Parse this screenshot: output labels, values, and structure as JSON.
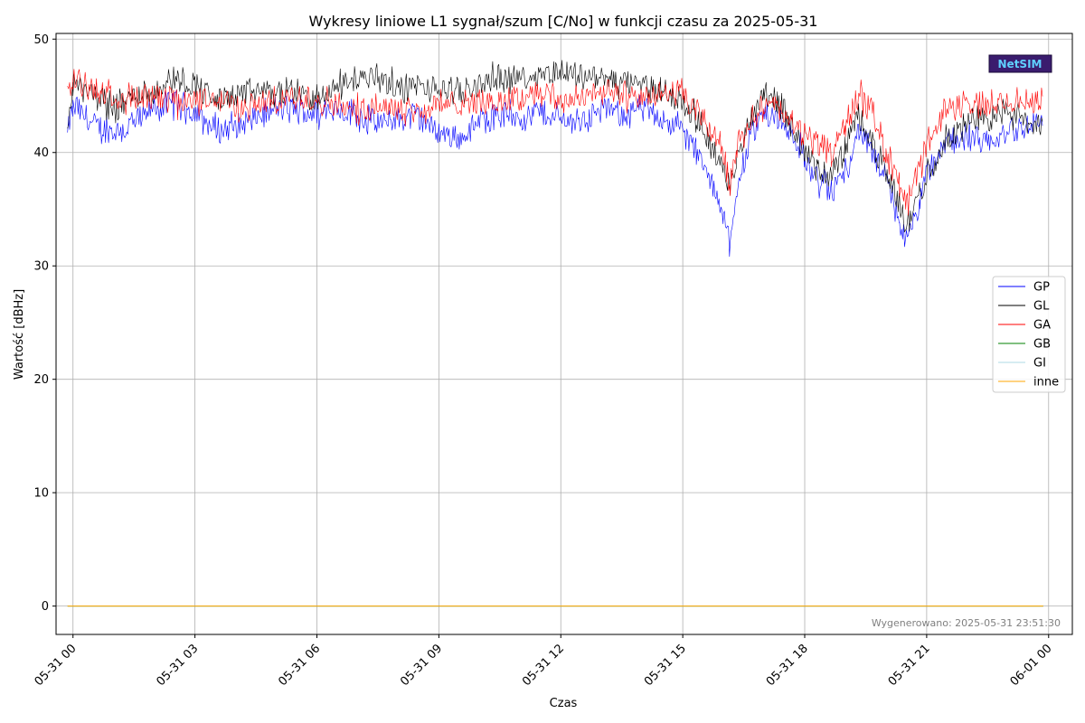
{
  "chart_data": {
    "type": "line",
    "title": "Wykresy liniowe L1 sygnał/szum [C/No] w funkcji czasu za 2025-05-31",
    "xlabel": "Czas",
    "ylabel": "Wartość [dBHz]",
    "xlim": [
      "2025-05-30 23:35",
      "2025-06-01 00:35"
    ],
    "ylim": [
      -2.5,
      50.5
    ],
    "x_ticks": [
      "05-31 00",
      "05-31 03",
      "05-31 06",
      "05-31 09",
      "05-31 12",
      "05-31 15",
      "05-31 18",
      "05-31 21",
      "06-01 00"
    ],
    "y_ticks": [
      "0",
      "10",
      "20",
      "30",
      "40",
      "50"
    ],
    "grid": true,
    "legend_placement": "right",
    "x_range": [
      "2025-05-30 23:52",
      "2025-05-31 23:52"
    ],
    "series": [
      {
        "name": "GP",
        "color": "#0000ff",
        "points": [
          [
            "23:52",
            41.5
          ],
          [
            "00:00",
            44.2
          ],
          [
            "00:30",
            42.5
          ],
          [
            "01:00",
            41.8
          ],
          [
            "01:30",
            42.5
          ],
          [
            "02:00",
            43.8
          ],
          [
            "02:30",
            44.5
          ],
          [
            "03:00",
            43.5
          ],
          [
            "03:30",
            42.0
          ],
          [
            "04:00",
            42.2
          ],
          [
            "04:30",
            43.0
          ],
          [
            "05:00",
            43.8
          ],
          [
            "05:30",
            43.8
          ],
          [
            "06:00",
            43.5
          ],
          [
            "06:30",
            43.8
          ],
          [
            "07:00",
            43.2
          ],
          [
            "07:30",
            42.5
          ],
          [
            "08:00",
            43.0
          ],
          [
            "08:30",
            43.2
          ],
          [
            "09:00",
            41.8
          ],
          [
            "09:30",
            41.2
          ],
          [
            "10:00",
            42.8
          ],
          [
            "10:30",
            43.5
          ],
          [
            "11:00",
            43.2
          ],
          [
            "11:30",
            43.5
          ],
          [
            "12:00",
            43.0
          ],
          [
            "12:30",
            42.8
          ],
          [
            "13:00",
            43.8
          ],
          [
            "13:30",
            43.5
          ],
          [
            "14:00",
            43.8
          ],
          [
            "14:30",
            43.0
          ],
          [
            "15:00",
            42.0
          ],
          [
            "15:20",
            40.0
          ],
          [
            "15:40",
            37.5
          ],
          [
            "16:00",
            35.0
          ],
          [
            "16:10",
            31.5
          ],
          [
            "16:20",
            36.5
          ],
          [
            "16:40",
            41.5
          ],
          [
            "17:00",
            43.5
          ],
          [
            "17:20",
            43.0
          ],
          [
            "17:40",
            41.8
          ],
          [
            "18:00",
            39.5
          ],
          [
            "18:20",
            37.5
          ],
          [
            "18:40",
            36.5
          ],
          [
            "19:00",
            38.5
          ],
          [
            "19:20",
            42.0
          ],
          [
            "19:40",
            40.0
          ],
          [
            "20:00",
            37.5
          ],
          [
            "20:20",
            34.0
          ],
          [
            "20:30",
            32.0
          ],
          [
            "20:50",
            35.5
          ],
          [
            "21:00",
            38.0
          ],
          [
            "21:30",
            41.0
          ],
          [
            "22:00",
            41.5
          ],
          [
            "22:30",
            40.5
          ],
          [
            "23:00",
            41.8
          ],
          [
            "23:30",
            42.5
          ],
          [
            "23:52",
            43.0
          ]
        ]
      },
      {
        "name": "GL",
        "color": "#000000",
        "points": [
          [
            "23:52",
            42.0
          ],
          [
            "00:00",
            46.0
          ],
          [
            "00:30",
            45.0
          ],
          [
            "01:00",
            44.0
          ],
          [
            "01:30",
            45.0
          ],
          [
            "02:00",
            45.5
          ],
          [
            "02:30",
            46.5
          ],
          [
            "03:00",
            46.0
          ],
          [
            "03:30",
            44.5
          ],
          [
            "04:00",
            45.0
          ],
          [
            "04:30",
            45.3
          ],
          [
            "05:00",
            45.2
          ],
          [
            "05:30",
            45.5
          ],
          [
            "06:00",
            44.5
          ],
          [
            "06:30",
            46.0
          ],
          [
            "07:00",
            46.5
          ],
          [
            "07:30",
            46.8
          ],
          [
            "08:00",
            45.5
          ],
          [
            "08:30",
            45.8
          ],
          [
            "09:00",
            45.5
          ],
          [
            "09:30",
            45.2
          ],
          [
            "10:00",
            46.0
          ],
          [
            "10:30",
            46.8
          ],
          [
            "11:00",
            46.5
          ],
          [
            "11:30",
            47.0
          ],
          [
            "12:00",
            47.2
          ],
          [
            "12:30",
            46.8
          ],
          [
            "13:00",
            46.5
          ],
          [
            "13:30",
            46.2
          ],
          [
            "14:00",
            45.8
          ],
          [
            "14:30",
            45.5
          ],
          [
            "15:00",
            44.5
          ],
          [
            "15:20",
            43.0
          ],
          [
            "15:40",
            41.0
          ],
          [
            "16:00",
            38.5
          ],
          [
            "16:10",
            36.5
          ],
          [
            "16:20",
            39.5
          ],
          [
            "16:40",
            43.0
          ],
          [
            "17:00",
            45.5
          ],
          [
            "17:20",
            44.5
          ],
          [
            "17:40",
            42.5
          ],
          [
            "18:00",
            40.0
          ],
          [
            "18:20",
            38.5
          ],
          [
            "18:40",
            38.0
          ],
          [
            "19:00",
            40.5
          ],
          [
            "19:20",
            43.5
          ],
          [
            "19:40",
            41.0
          ],
          [
            "20:00",
            38.0
          ],
          [
            "20:20",
            35.5
          ],
          [
            "20:30",
            33.5
          ],
          [
            "20:50",
            36.5
          ],
          [
            "21:00",
            38.0
          ],
          [
            "21:30",
            41.5
          ],
          [
            "22:00",
            42.5
          ],
          [
            "22:30",
            43.0
          ],
          [
            "23:00",
            43.5
          ],
          [
            "23:30",
            42.5
          ],
          [
            "23:52",
            42.5
          ]
        ]
      },
      {
        "name": "GA",
        "color": "#ff0000",
        "points": [
          [
            "23:52",
            44.5
          ],
          [
            "00:00",
            46.5
          ],
          [
            "00:30",
            45.8
          ],
          [
            "01:00",
            44.8
          ],
          [
            "01:30",
            44.8
          ],
          [
            "02:00",
            44.5
          ],
          [
            "02:30",
            44.5
          ],
          [
            "03:00",
            44.5
          ],
          [
            "03:30",
            44.8
          ],
          [
            "04:00",
            44.0
          ],
          [
            "04:30",
            44.2
          ],
          [
            "05:00",
            44.5
          ],
          [
            "05:30",
            44.8
          ],
          [
            "06:00",
            44.8
          ],
          [
            "06:30",
            44.2
          ],
          [
            "07:00",
            43.8
          ],
          [
            "07:30",
            44.2
          ],
          [
            "08:00",
            44.0
          ],
          [
            "08:30",
            43.5
          ],
          [
            "09:00",
            44.2
          ],
          [
            "09:30",
            44.5
          ],
          [
            "10:00",
            44.5
          ],
          [
            "10:30",
            44.5
          ],
          [
            "11:00",
            44.8
          ],
          [
            "11:30",
            45.5
          ],
          [
            "12:00",
            44.5
          ],
          [
            "12:30",
            45.0
          ],
          [
            "13:00",
            45.5
          ],
          [
            "13:30",
            45.0
          ],
          [
            "14:00",
            45.0
          ],
          [
            "14:30",
            45.2
          ],
          [
            "15:00",
            45.0
          ],
          [
            "15:20",
            43.5
          ],
          [
            "15:40",
            42.0
          ],
          [
            "16:00",
            40.0
          ],
          [
            "16:10",
            37.0
          ],
          [
            "16:20",
            40.5
          ],
          [
            "16:40",
            43.0
          ],
          [
            "17:00",
            43.8
          ],
          [
            "17:20",
            44.0
          ],
          [
            "17:40",
            42.5
          ],
          [
            "18:00",
            41.5
          ],
          [
            "18:20",
            41.0
          ],
          [
            "18:40",
            40.0
          ],
          [
            "19:00",
            42.5
          ],
          [
            "19:20",
            45.0
          ],
          [
            "19:40",
            43.5
          ],
          [
            "20:00",
            40.0
          ],
          [
            "20:20",
            37.5
          ],
          [
            "20:30",
            35.5
          ],
          [
            "20:50",
            38.5
          ],
          [
            "21:00",
            41.0
          ],
          [
            "21:30",
            44.0
          ],
          [
            "22:00",
            44.5
          ],
          [
            "22:30",
            44.0
          ],
          [
            "23:00",
            44.5
          ],
          [
            "23:30",
            44.5
          ],
          [
            "23:52",
            45.0
          ]
        ]
      },
      {
        "name": "GB",
        "color": "#008000",
        "points": [
          [
            "23:52",
            0
          ],
          [
            "23:52",
            0
          ]
        ]
      },
      {
        "name": "GI",
        "color": "#add8e6",
        "points": [
          [
            "23:52",
            0
          ],
          [
            "23:52",
            0
          ]
        ]
      },
      {
        "name": "inne",
        "color": "#ffa500",
        "points": [
          [
            "23:52",
            0
          ],
          [
            "23:52",
            0
          ]
        ]
      }
    ],
    "annotation": "Wygenerowano: 2025-05-31 23:51:30",
    "logo_text": "NetSIM"
  }
}
